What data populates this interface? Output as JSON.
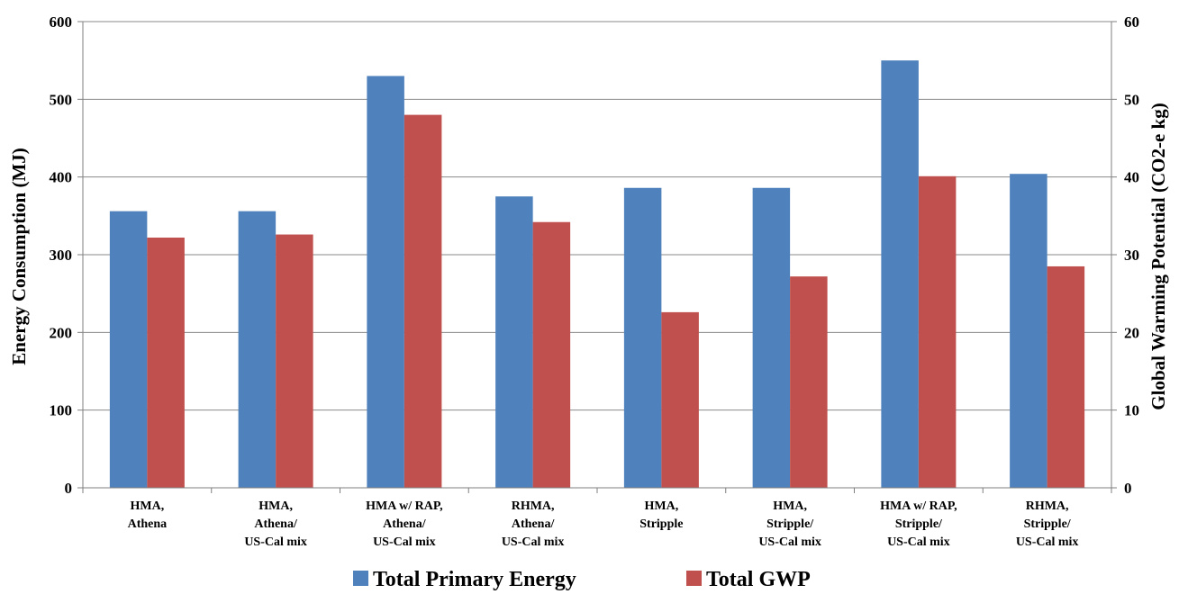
{
  "chart_data": {
    "type": "bar",
    "categories": [
      [
        "HMA,",
        "Athena"
      ],
      [
        "HMA,",
        "Athena/",
        "US-Cal mix"
      ],
      [
        "HMA w/ RAP,",
        "Athena/",
        "US-Cal mix"
      ],
      [
        "RHMA,",
        "Athena/",
        "US-Cal mix"
      ],
      [
        "HMA,",
        "Stripple"
      ],
      [
        "HMA,",
        "Stripple/",
        "US-Cal mix"
      ],
      [
        "HMA w/ RAP,",
        "Stripple/",
        "US-Cal mix"
      ],
      [
        "RHMA,",
        "Stripple/",
        "US-Cal mix"
      ]
    ],
    "series": [
      {
        "name": "Total Primary Energy",
        "axis": "left",
        "color": "#4F81BD",
        "values": [
          356,
          356,
          530,
          375,
          386,
          386,
          550,
          404
        ]
      },
      {
        "name": "Total GWP",
        "axis": "right",
        "color": "#C0504D",
        "values": [
          32.2,
          32.6,
          48.0,
          34.2,
          22.6,
          27.2,
          40.1,
          28.5
        ]
      }
    ],
    "ylabel": "Energy Consumption (MJ)",
    "y2label": "Global Warming Potential (CO2-e kg)",
    "ylim": [
      0,
      600
    ],
    "y2lim": [
      0,
      60
    ],
    "yticks": [
      "0",
      "100",
      "200",
      "300",
      "400",
      "500",
      "600"
    ],
    "y2ticks": [
      "0",
      "10",
      "20",
      "30",
      "40",
      "50",
      "60"
    ],
    "grid": true,
    "legend": "bottom"
  }
}
